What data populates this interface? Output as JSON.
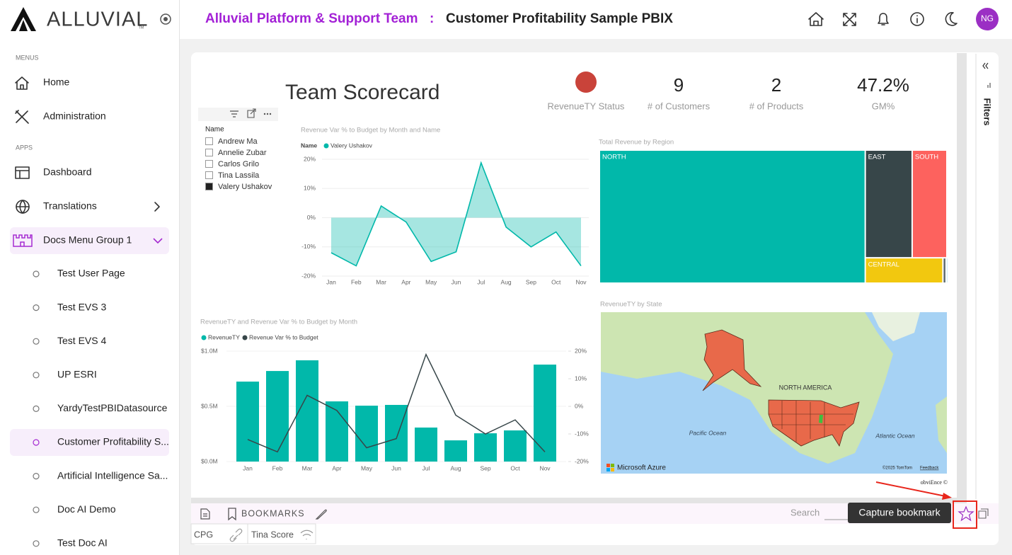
{
  "sidebar": {
    "logo": "ALLUVIAL",
    "logo_mark": "TM",
    "menus_heading": "MENUS",
    "menus": [
      "Home",
      "Administration"
    ],
    "apps_heading": "APPS",
    "apps": [
      "Dashboard",
      "Translations"
    ],
    "group": {
      "label": "Docs Menu Group 1",
      "items": [
        "Test User Page",
        "Test EVS 3",
        "Test EVS 4",
        "UP ESRI",
        "YardyTestPBIDatasource",
        "Customer Profitability S...",
        "Artificial Intelligence Sa...",
        "Doc AI Demo",
        "Test Doc AI"
      ],
      "active_item": 5
    }
  },
  "header": {
    "team": "Alluvial Platform & Support Team",
    "separator": ":",
    "title": "Customer Profitability Sample PBIX",
    "avatar": "NG"
  },
  "report": {
    "title": "Team Scorecard",
    "status_label": "RevenueTY Status",
    "kpis": [
      {
        "value": "9",
        "label": "# of Customers"
      },
      {
        "value": "2",
        "label": "# of Products"
      },
      {
        "value": "47.2%",
        "label": "GM%"
      }
    ],
    "watermark": "obviEnce ©"
  },
  "slicer": {
    "title": "Name",
    "options": [
      "Andrew Ma",
      "Annelie Zubar",
      "Carlos Grilo",
      "Tina Lassila",
      "Valery Ushakov"
    ],
    "selected": [
      false,
      false,
      false,
      false,
      true
    ]
  },
  "line_chart": {
    "type": "area",
    "title": "Revenue Var % to Budget by Month and Name",
    "legend_title": "Name",
    "categories": [
      "Jan",
      "Feb",
      "Mar",
      "Apr",
      "May",
      "Jun",
      "Jul",
      "Aug",
      "Sep",
      "Oct",
      "Nov"
    ],
    "series": [
      {
        "name": "Valery Ushakov",
        "color": "#01b8aa",
        "values": [
          -12,
          -16.5,
          4,
          -1.5,
          -15,
          -11.7,
          18.8,
          -3.2,
          -10,
          -4.9,
          -16.5
        ]
      }
    ],
    "ylim": [
      -20,
      20
    ],
    "yticks": [
      {
        "value": 20,
        "label": "20%"
      },
      {
        "value": 10,
        "label": "10%"
      },
      {
        "value": 0,
        "label": "0%"
      },
      {
        "value": -10,
        "label": "-10%"
      },
      {
        "value": -20,
        "label": "-20%"
      }
    ],
    "grid": true
  },
  "treemap": {
    "type": "treemap",
    "title": "Total Revenue by Region",
    "categories": [
      "NORTH",
      "EAST",
      "SOUTH",
      "CENTRAL",
      null,
      null
    ],
    "values": [
      70,
      10,
      7.4,
      3.9,
      0.16,
      0.04
    ],
    "colors": [
      "#01b8aa",
      "#374649",
      "#fd625e",
      "#f2c80f",
      "#5f6b6d",
      "#8ad4eb"
    ]
  },
  "combo_chart": {
    "type": "bar-line",
    "title": "RevenueTY and Revenue Var % to Budget by Month",
    "categories": [
      "Jan",
      "Feb",
      "Mar",
      "Apr",
      "May",
      "Jun",
      "Jul",
      "Aug",
      "Sep",
      "Oct",
      "Nov"
    ],
    "series": [
      {
        "name": "RevenueTY",
        "color": "#01b8aa",
        "values": [
          724000,
          820000,
          917000,
          545000,
          506000,
          513000,
          308000,
          192000,
          256000,
          282000,
          878000
        ]
      },
      {
        "name": "Revenue Var % to Budget",
        "color": "#374649",
        "axis": "y2",
        "values": [
          -12,
          -16.5,
          4,
          -1.5,
          -15,
          -11.7,
          18.8,
          -3.2,
          -10,
          -4.9,
          -16.5
        ]
      }
    ],
    "ylim": [
      0,
      1000000
    ],
    "yticks": [
      {
        "value": 1000000,
        "label": "$1.0M"
      },
      {
        "value": 500000,
        "label": "$0.5M"
      },
      {
        "value": 0,
        "label": "$0.0M"
      }
    ],
    "y2lim": [
      -20,
      20
    ],
    "y2ticks": [
      {
        "value": 20,
        "label": "20%"
      },
      {
        "value": 10,
        "label": "10%"
      },
      {
        "value": 0,
        "label": "0%"
      },
      {
        "value": -10,
        "label": "-10%"
      },
      {
        "value": -20,
        "label": "-20%"
      }
    ]
  },
  "map": {
    "title": "RevenueTY by State",
    "region_label": "NORTH AMERICA",
    "oceans": [
      "Pacific Ocean",
      "Atlantic Ocean"
    ],
    "provider": "Microsoft Azure",
    "copyright": "©2025 TomTom",
    "feedback": "Feedback"
  },
  "filters": {
    "label": "Filters"
  },
  "bookmarks": {
    "label": "BOOKMARKS",
    "search": "Search",
    "tooltip": "Capture bookmark",
    "items": [
      "CPG",
      "Tina Score"
    ]
  }
}
